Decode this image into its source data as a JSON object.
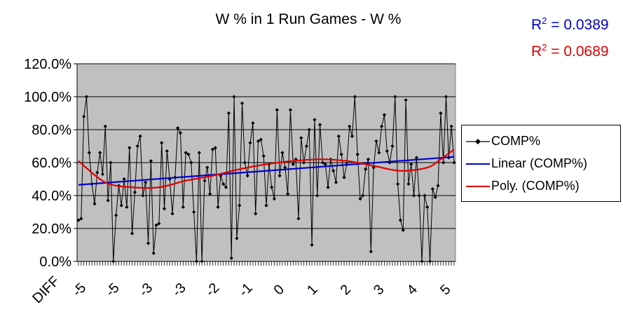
{
  "chart_data": {
    "type": "line",
    "title": "W % in 1 Run Games - W %",
    "xlabel": "",
    "ylabel": "",
    "ylim": [
      0,
      120
    ],
    "y_ticks": [
      "0.0%",
      "20.0%",
      "40.0%",
      "60.0%",
      "80.0%",
      "100.0%",
      "120.0%"
    ],
    "x_tick_labels": [
      "DIFF",
      "-5",
      "-5",
      "-3",
      "-3",
      "-2",
      "-1",
      "0",
      "1",
      "2",
      "3",
      "4",
      "5"
    ],
    "grid": true,
    "legend_position": "right",
    "plot_background": "#c0c0c0",
    "series": [
      {
        "name": "COMP%",
        "color": "#000000",
        "marker": "diamond",
        "values": [
          25,
          26,
          88,
          100,
          66,
          47,
          35,
          54,
          66,
          53,
          82,
          37,
          60,
          0,
          28,
          46,
          34,
          50,
          33,
          69,
          17,
          42,
          70,
          76,
          40,
          48,
          11,
          61,
          5,
          22,
          23,
          72,
          32,
          67,
          50,
          29,
          51,
          81,
          78,
          33,
          66,
          65,
          60,
          30,
          0,
          66,
          0,
          49,
          57,
          41,
          68,
          69,
          33,
          52,
          47,
          45,
          90,
          2,
          100,
          14,
          34,
          96,
          60,
          52,
          72,
          84,
          29,
          73,
          74,
          64,
          34,
          59,
          45,
          38,
          92,
          52,
          66,
          57,
          41,
          92,
          59,
          62,
          26,
          75,
          60,
          70,
          80,
          10,
          86,
          40,
          83,
          60,
          59,
          45,
          62,
          55,
          48,
          76,
          65,
          51,
          59,
          82,
          76,
          100,
          65,
          38,
          40,
          56,
          62,
          6,
          57,
          73,
          66,
          82,
          89,
          67,
          60,
          70,
          100,
          47,
          25,
          19,
          98,
          47,
          59,
          40,
          63,
          40,
          0,
          40,
          33,
          0,
          44,
          39,
          46,
          90,
          60,
          100,
          63,
          82,
          60
        ],
        "x_first": 1,
        "x_step": 1
      },
      {
        "name": "Linear (COMP%)",
        "color": "#0000cc",
        "x": [
          1,
          141
        ],
        "values": [
          46.5,
          63.5
        ]
      },
      {
        "name": "Poly. (COMP%)",
        "color": "#e00000",
        "x": [
          1,
          11,
          21,
          31,
          41,
          51,
          61,
          71,
          81,
          91,
          101,
          111,
          121,
          131,
          136,
          141
        ],
        "values": [
          61,
          48,
          45,
          45,
          49,
          52,
          56,
          59,
          61,
          62,
          61,
          58,
          55,
          57,
          62,
          68
        ]
      }
    ]
  },
  "annotations": {
    "r2_linear_prefix": "R",
    "r2_linear_exp": "2",
    "r2_linear_value": " = 0.0389",
    "r2_linear_color": "#0000cc",
    "r2_poly_prefix": "R",
    "r2_poly_exp": "2",
    "r2_poly_value": " = 0.0689",
    "r2_poly_color": "#e00000"
  }
}
